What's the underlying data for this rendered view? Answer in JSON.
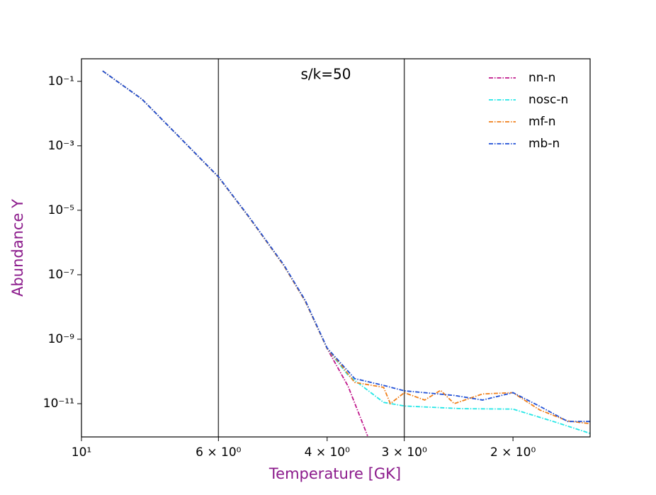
{
  "chart_data": {
    "type": "line",
    "annotation": "s/k=50",
    "xlabel": "Temperature [GK]",
    "ylabel": "Abundance Y",
    "xscale": "log",
    "yscale": "log",
    "xlim": [
      10,
      1.5
    ],
    "ylim": [
      9.3e-13,
      0.5
    ],
    "xticks": [
      {
        "value": 10,
        "label": "10¹"
      },
      {
        "value": 6,
        "label": "6 × 10⁰"
      },
      {
        "value": 4,
        "label": "4 × 10⁰"
      },
      {
        "value": 3,
        "label": "3 × 10⁰"
      },
      {
        "value": 2,
        "label": "2 × 10⁰"
      }
    ],
    "yticks": [
      {
        "value": 0.1,
        "label": "10⁻¹"
      },
      {
        "value": 0.001,
        "label": "10⁻³"
      },
      {
        "value": 1e-05,
        "label": "10⁻⁵"
      },
      {
        "value": 1e-07,
        "label": "10⁻⁷"
      },
      {
        "value": 1e-09,
        "label": "10⁻⁹"
      },
      {
        "value": 1e-11,
        "label": "10⁻¹¹"
      }
    ],
    "vlines": [
      6,
      3
    ],
    "legend": "upper right",
    "series": [
      {
        "name": "nn-n",
        "color": "#c0178b",
        "x": [
          9.24,
          7.98,
          7.0,
          6,
          5.37,
          4.7,
          4.34,
          4,
          3.7,
          3.44
        ],
        "values": [
          0.21,
          0.028,
          0.0022,
          0.000107,
          6.6e-06,
          1.9e-07,
          1.5e-08,
          5.1e-10,
          3.5e-11,
          1e-12
        ]
      },
      {
        "name": "nosc-n",
        "color": "#22e6e6",
        "x": [
          9.24,
          7.98,
          7.0,
          6,
          5.37,
          4.7,
          4.34,
          4,
          3.7,
          3.24,
          3,
          2.42,
          2,
          1.72,
          1.5
        ],
        "values": [
          0.21,
          0.028,
          0.0022,
          0.000107,
          6.6e-06,
          1.9e-07,
          1.5e-08,
          5.1e-10,
          7.6e-11,
          1.1e-11,
          8.5e-12,
          7e-12,
          6.8e-12,
          2.8e-12,
          1.2e-12
        ]
      },
      {
        "name": "mf-n",
        "color": "#f07f1a",
        "x": [
          9.24,
          7.98,
          7.0,
          6,
          5.37,
          4.7,
          4.34,
          4,
          3.8,
          3.61,
          3.24,
          3.16,
          3,
          2.78,
          2.62,
          2.49,
          2.24,
          2,
          1.81,
          1.63,
          1.5
        ],
        "values": [
          0.21,
          0.028,
          0.0022,
          0.000107,
          6.6e-06,
          1.9e-07,
          1.5e-08,
          5.1e-10,
          1.6e-10,
          4.6e-11,
          3.2e-11,
          1e-11,
          2.2e-11,
          1.3e-11,
          2.6e-11,
          1e-11,
          2e-11,
          2.2e-11,
          6.4e-12,
          2.9e-12,
          2.4e-12
        ]
      },
      {
        "name": "mb-n",
        "color": "#1f4fd6",
        "x": [
          9.24,
          7.98,
          7.0,
          6,
          5.37,
          4.7,
          4.34,
          4,
          3.8,
          3.61,
          3.24,
          3,
          2.78,
          2.49,
          2.24,
          2,
          1.81,
          1.63,
          1.5
        ],
        "values": [
          0.21,
          0.028,
          0.0022,
          0.00011,
          6.8e-06,
          2e-07,
          1.6e-08,
          5.3e-10,
          1.8e-10,
          6e-11,
          3.7e-11,
          2.5e-11,
          2.2e-11,
          1.8e-11,
          1.3e-11,
          2.2e-11,
          8.3e-12,
          2.8e-12,
          2.8e-12
        ]
      }
    ]
  }
}
